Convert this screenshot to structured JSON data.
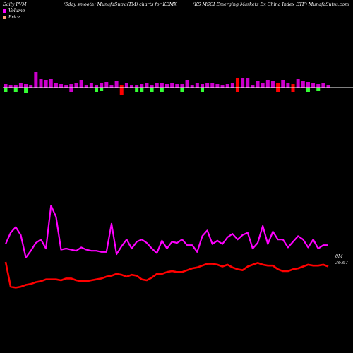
{
  "header": {
    "left": "Daily PVM",
    "middle": "(5day smooth) MunafaSutra(TM) charts for KEMX",
    "right": "(KS MSCI Emerging Markets Ex China  Index ETF) MunafaSutra.com"
  },
  "legend": [
    {
      "label": "Volume",
      "color": "#ff00ff"
    },
    {
      "label": "Price",
      "color": "#ffa07a"
    }
  ],
  "labels": {
    "volume_last": "0M",
    "price_last": "36.67"
  },
  "colors": {
    "background": "#000000",
    "volume_line": "#ff00ff",
    "price_line": "#ff0000",
    "bar_up": "#cc00cc",
    "bar_down": "#ff0000",
    "bar_green": "#33ff33",
    "baseline": "#ffffff"
  },
  "chart_data": {
    "type": "line",
    "series": [
      {
        "name": "Volume",
        "values": [
          34,
          44,
          49,
          42,
          22,
          28,
          35,
          38,
          30,
          68,
          58,
          29,
          30,
          29,
          28,
          31,
          29,
          28,
          28,
          27,
          27,
          52,
          25,
          32,
          38,
          30,
          36,
          38,
          35,
          30,
          26,
          37,
          30,
          36,
          35,
          38,
          33,
          33,
          27,
          41,
          46,
          34,
          37,
          34,
          40,
          43,
          38,
          42,
          44,
          30,
          35,
          50,
          34,
          45,
          38,
          38,
          31,
          36,
          41,
          38,
          31,
          38,
          30,
          33,
          33
        ]
      },
      {
        "name": "Price",
        "values": [
          30,
          3,
          2,
          3,
          5,
          6,
          8,
          9,
          11,
          11,
          11,
          10,
          12,
          12,
          10,
          9,
          9,
          10,
          11,
          12,
          14,
          15,
          17,
          16,
          14,
          16,
          15,
          11,
          10,
          13,
          17,
          17,
          19,
          20,
          19,
          19,
          21,
          23,
          24,
          26,
          28,
          28,
          27,
          25,
          27,
          24,
          22,
          21,
          25,
          27,
          29,
          27,
          26,
          26,
          22,
          20,
          20,
          22,
          23,
          25,
          27,
          26,
          26,
          27,
          25
        ]
      }
    ],
    "bars": [
      {
        "up": 5,
        "down": 6,
        "color": "green"
      },
      {
        "up": 4,
        "down": 0,
        "color": "purple"
      },
      {
        "up": 3,
        "down": 5,
        "color": "green"
      },
      {
        "up": 6,
        "down": 0,
        "color": "purple"
      },
      {
        "up": 5,
        "down": 7,
        "color": "green"
      },
      {
        "up": 4,
        "down": 0,
        "color": "purple"
      },
      {
        "up": 22,
        "down": 0,
        "color": "purple"
      },
      {
        "up": 12,
        "down": 0,
        "color": "purple"
      },
      {
        "up": 10,
        "down": 0,
        "color": "purple"
      },
      {
        "up": 12,
        "down": 0,
        "color": "purple"
      },
      {
        "up": 7,
        "down": 0,
        "color": "purple"
      },
      {
        "up": 5,
        "down": 0,
        "color": "purple"
      },
      {
        "up": 3,
        "down": 0,
        "color": "purple"
      },
      {
        "up": 5,
        "down": 6,
        "color": "purple"
      },
      {
        "up": 6,
        "down": 0,
        "color": "purple"
      },
      {
        "up": 11,
        "down": 0,
        "color": "purple"
      },
      {
        "up": 4,
        "down": 0,
        "color": "purple"
      },
      {
        "up": 6,
        "down": 0,
        "color": "purple"
      },
      {
        "up": 3,
        "down": 6,
        "color": "green"
      },
      {
        "up": 7,
        "down": 4,
        "color": "green"
      },
      {
        "up": 8,
        "down": 0,
        "color": "purple"
      },
      {
        "up": 4,
        "down": 0,
        "color": "purple"
      },
      {
        "up": 9,
        "down": 0,
        "color": "purple"
      },
      {
        "up": 4,
        "down": 9,
        "color": "red"
      },
      {
        "up": 6,
        "down": 0,
        "color": "purple"
      },
      {
        "up": 3,
        "down": 0,
        "color": "purple"
      },
      {
        "up": 4,
        "down": 6,
        "color": "green"
      },
      {
        "up": 5,
        "down": 5,
        "color": "green"
      },
      {
        "up": 7,
        "down": 0,
        "color": "purple"
      },
      {
        "up": 4,
        "down": 6,
        "color": "green"
      },
      {
        "up": 6,
        "down": 0,
        "color": "purple"
      },
      {
        "up": 6,
        "down": 5,
        "color": "green"
      },
      {
        "up": 5,
        "down": 0,
        "color": "purple"
      },
      {
        "up": 6,
        "down": 0,
        "color": "purple"
      },
      {
        "up": 5,
        "down": 0,
        "color": "purple"
      },
      {
        "up": 5,
        "down": 5,
        "color": "green"
      },
      {
        "up": 11,
        "down": 0,
        "color": "purple"
      },
      {
        "up": 3,
        "down": 0,
        "color": "purple"
      },
      {
        "up": 6,
        "down": 0,
        "color": "purple"
      },
      {
        "up": 5,
        "down": 5,
        "color": "green"
      },
      {
        "up": 7,
        "down": 0,
        "color": "purple"
      },
      {
        "up": 6,
        "down": 0,
        "color": "purple"
      },
      {
        "up": 5,
        "down": 0,
        "color": "purple"
      },
      {
        "up": 4,
        "down": 0,
        "color": "purple"
      },
      {
        "up": 5,
        "down": 0,
        "color": "purple"
      },
      {
        "up": 6,
        "down": 0,
        "color": "purple"
      },
      {
        "up": 13,
        "down": 5,
        "color": "red"
      },
      {
        "up": 14,
        "down": 0,
        "color": "purple"
      },
      {
        "up": 13,
        "down": 0,
        "color": "purple"
      },
      {
        "up": 4,
        "down": 0,
        "color": "purple"
      },
      {
        "up": 9,
        "down": 0,
        "color": "purple"
      },
      {
        "up": 6,
        "down": 0,
        "color": "purple"
      },
      {
        "up": 10,
        "down": 0,
        "color": "purple"
      },
      {
        "up": 9,
        "down": 0,
        "color": "purple"
      },
      {
        "up": 6,
        "down": 5,
        "color": "red"
      },
      {
        "up": 11,
        "down": 0,
        "color": "purple"
      },
      {
        "up": 6,
        "down": 0,
        "color": "purple"
      },
      {
        "up": 5,
        "down": 5,
        "color": "red"
      },
      {
        "up": 12,
        "down": 0,
        "color": "purple"
      },
      {
        "up": 9,
        "down": 0,
        "color": "purple"
      },
      {
        "up": 8,
        "down": 6,
        "color": "green"
      },
      {
        "up": 6,
        "down": 0,
        "color": "purple"
      },
      {
        "up": 5,
        "down": 4,
        "color": "green"
      },
      {
        "up": 6,
        "down": 0,
        "color": "purple"
      },
      {
        "up": 4,
        "down": 0,
        "color": "purple"
      }
    ]
  }
}
